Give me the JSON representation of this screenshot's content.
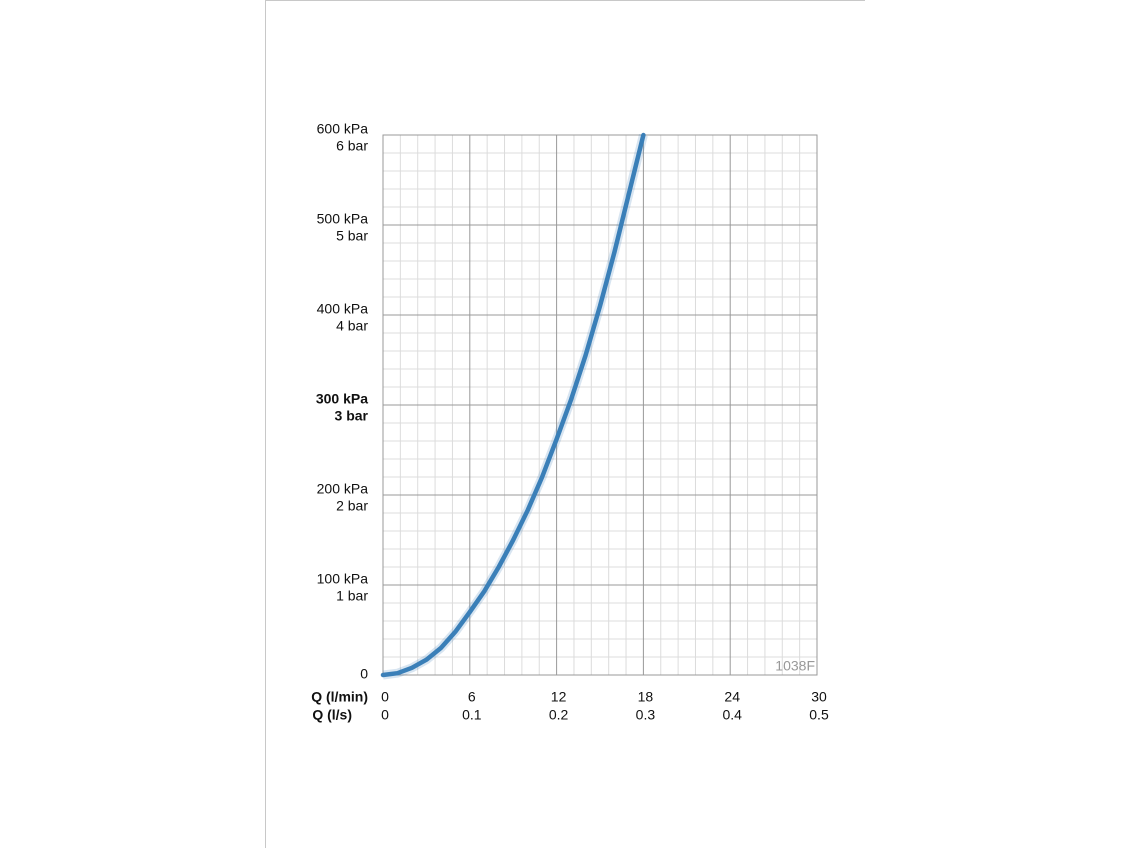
{
  "chart_data": {
    "type": "line",
    "x": [
      0,
      1,
      2,
      3,
      4,
      5,
      6,
      7,
      8,
      9,
      10,
      11,
      12,
      13,
      14,
      15,
      16,
      17,
      18
    ],
    "values": [
      0,
      2,
      8,
      17,
      30,
      48,
      70,
      93,
      120,
      150,
      183,
      220,
      262,
      306,
      355,
      410,
      470,
      535,
      600
    ],
    "color": "#3a7fb8",
    "xlim": [
      0,
      30
    ],
    "xticks": [
      0,
      6,
      12,
      18,
      24,
      30
    ],
    "x_label": "Q (l/min)",
    "x2lim": [
      0,
      0.5
    ],
    "x2ticks": [
      0,
      0.1,
      0.2,
      0.3,
      0.4,
      0.5
    ],
    "x2_label": "Q (l/s)",
    "ylim": [
      0,
      600
    ],
    "yticks": [
      0,
      {
        "value": 100,
        "label": "100 kPa"
      },
      {
        "value": 200,
        "label": "200 kPa"
      },
      {
        "value": 300,
        "label": "300 kPa"
      },
      {
        "value": 400,
        "label": "400 kPa"
      },
      {
        "value": 500,
        "label": "500 kPa"
      },
      {
        "value": 600,
        "label": "600 kPa"
      }
    ],
    "ytick_bar_labels": [
      null,
      "1 bar",
      "2 bar",
      "3 bar",
      "4 bar",
      "5 bar",
      "6 bar"
    ],
    "emphasized_ytick_index": 3,
    "grid": true,
    "minor_grid_divisions": 5,
    "annotation": "1038F"
  }
}
